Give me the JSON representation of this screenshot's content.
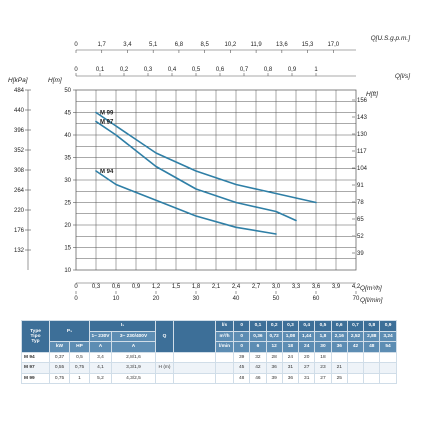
{
  "chart_data": {
    "type": "line",
    "top_axis": {
      "label": "Q[U.S.g.p.m.]",
      "ticks": [
        "0",
        "1,7",
        "3,4",
        "5,1",
        "6,8",
        "8,5",
        "10,2",
        "11,9",
        "13,6",
        "15,3",
        "17,0"
      ]
    },
    "top_axis2": {
      "label": "Q[l/s]",
      "ticks": [
        "0",
        "0,1",
        "0,2",
        "0,3",
        "0,4",
        "0,5",
        "0,6",
        "0,7",
        "0,8",
        "0,9",
        "1"
      ]
    },
    "bottom_axis": {
      "label": "Q[m³/h]",
      "ticks": [
        "0",
        "0,3",
        "0,6",
        "0,9",
        "1,2",
        "1,5",
        "1,8",
        "2,1",
        "2,4",
        "2,7",
        "3,0",
        "3,3",
        "3,6",
        "3,9",
        "4,2"
      ]
    },
    "bottom_axis2": {
      "label": "Q[l/min]",
      "ticks": [
        "0",
        "10",
        "20",
        "30",
        "40",
        "50",
        "60",
        "70"
      ]
    },
    "left_axis_m": {
      "label": "H[m]",
      "ticks": [
        "50",
        "45",
        "40",
        "35",
        "30",
        "25",
        "20",
        "15",
        "10"
      ]
    },
    "left_axis_kpa": {
      "label": "H[kPa]",
      "ticks": [
        "484",
        "440",
        "396",
        "352",
        "308",
        "264",
        "220",
        "176",
        "132"
      ]
    },
    "right_axis_ft": {
      "label": "H[ft]",
      "ticks": [
        "156",
        "143",
        "130",
        "117",
        "104",
        "91",
        "78",
        "65",
        "52",
        "39"
      ]
    },
    "xlim": [
      0,
      70
    ],
    "ylim": [
      10,
      50
    ],
    "series": [
      {
        "name": "M 99",
        "color": "#2f7fa6",
        "x": [
          5,
          10,
          20,
          30,
          40,
          50,
          60
        ],
        "y": [
          45,
          42,
          36,
          32,
          29,
          27,
          25
        ]
      },
      {
        "name": "M 97",
        "color": "#2f7fa6",
        "x": [
          5,
          10,
          20,
          30,
          40,
          50,
          55
        ],
        "y": [
          43,
          40,
          33,
          28,
          25,
          23,
          21
        ]
      },
      {
        "name": "M 94",
        "color": "#2f7fa6",
        "x": [
          5,
          10,
          20,
          30,
          40,
          50
        ],
        "y": [
          32,
          29,
          25.5,
          22,
          19.5,
          18
        ]
      }
    ]
  },
  "table": {
    "header_type": "Type",
    "header_tipo": "Tipo",
    "header_typ": "Typ",
    "header_p1": "P₁",
    "header_kw": "kW",
    "header_hp": "HP",
    "header_i1": "I₁",
    "header_i1_a": "1~ 230V",
    "header_i1_b": "3~ 230/400V",
    "header_a": "A",
    "header_q": "Q",
    "unit_ls": "l/s",
    "unit_m3h": "m³/h",
    "unit_lmin": "l/min",
    "q_ls": [
      "0",
      "0,1",
      "0,2",
      "0,3",
      "0,4",
      "0,5",
      "0,6",
      "0,7",
      "0,8",
      "0,9",
      "1"
    ],
    "q_m3h": [
      "0",
      "0,36",
      "0,72",
      "1,08",
      "1,44",
      "1,8",
      "2,16",
      "2,52",
      "2,88",
      "3,24",
      "3,6"
    ],
    "q_lmin": [
      "0",
      "6",
      "12",
      "18",
      "24",
      "30",
      "36",
      "42",
      "48",
      "54",
      "60"
    ],
    "h_label": "H (m)",
    "rows": [
      {
        "name": "M 94",
        "kw": "0,37",
        "hp": "0,5",
        "i1a": "3,4",
        "i1b": "2,8/1,6",
        "h": [
          "39",
          "32",
          "28",
          "24",
          "20",
          "18",
          "",
          "",
          "",
          "",
          ""
        ]
      },
      {
        "name": "M 97",
        "kw": "0,55",
        "hp": "0,75",
        "i1a": "4,1",
        "i1b": "3,3/1,9",
        "h": [
          "45",
          "42",
          "36",
          "31",
          "27",
          "23",
          "21",
          "",
          "",
          "",
          ""
        ]
      },
      {
        "name": "M 99",
        "kw": "0,75",
        "hp": "1",
        "i1a": "5,2",
        "i1b": "4,3/2,5",
        "h": [
          "48",
          "46",
          "39",
          "36",
          "31",
          "27",
          "25",
          "",
          "",
          "",
          ""
        ]
      }
    ]
  }
}
